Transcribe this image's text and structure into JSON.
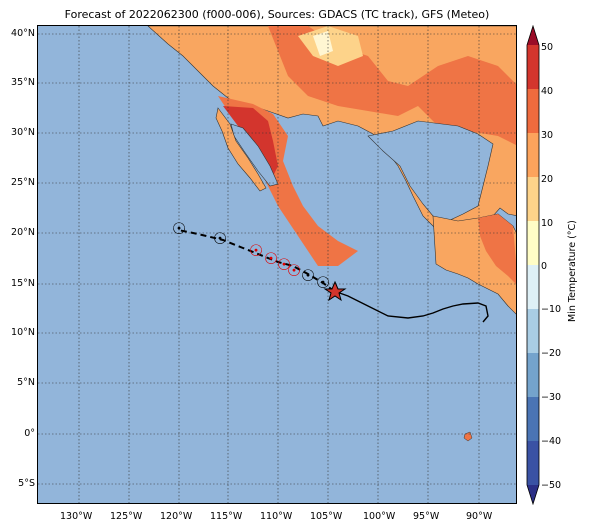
{
  "title": "Forecast of 2022062300 (f000-006), Sources: GDACS (TC track), GFS (Meteo)",
  "y_axis_labels": [
    "40°N",
    "35°N",
    "30°N",
    "25°N",
    "20°N",
    "15°N",
    "10°N",
    "5°N",
    "0°",
    "5°S"
  ],
  "x_axis_labels": [
    "130°W",
    "125°W",
    "120°W",
    "115°W",
    "110°W",
    "105°W",
    "100°W",
    "95°W",
    "90°W"
  ],
  "colorbar": {
    "title": "Min Temperature (°C)",
    "ticks": [
      "50",
      "40",
      "30",
      "20",
      "10",
      "0",
      "−10",
      "−20",
      "−30",
      "−40",
      "−50"
    ],
    "colors": [
      "#2b2f86",
      "#3a52a4",
      "#4a74b4",
      "#74a3cc",
      "#a9cde4",
      "#def0f6",
      "#fffdc6",
      "#fdd38a",
      "#fca35c",
      "#ef6b3e",
      "#d3352d",
      "#9a0c27"
    ]
  },
  "map": {
    "ocean_color": "#92b5da",
    "land_color": "#fdb66b",
    "track_marker_icon": "tropical-cyclone-symbol",
    "current_position_icon": "star-icon"
  }
}
